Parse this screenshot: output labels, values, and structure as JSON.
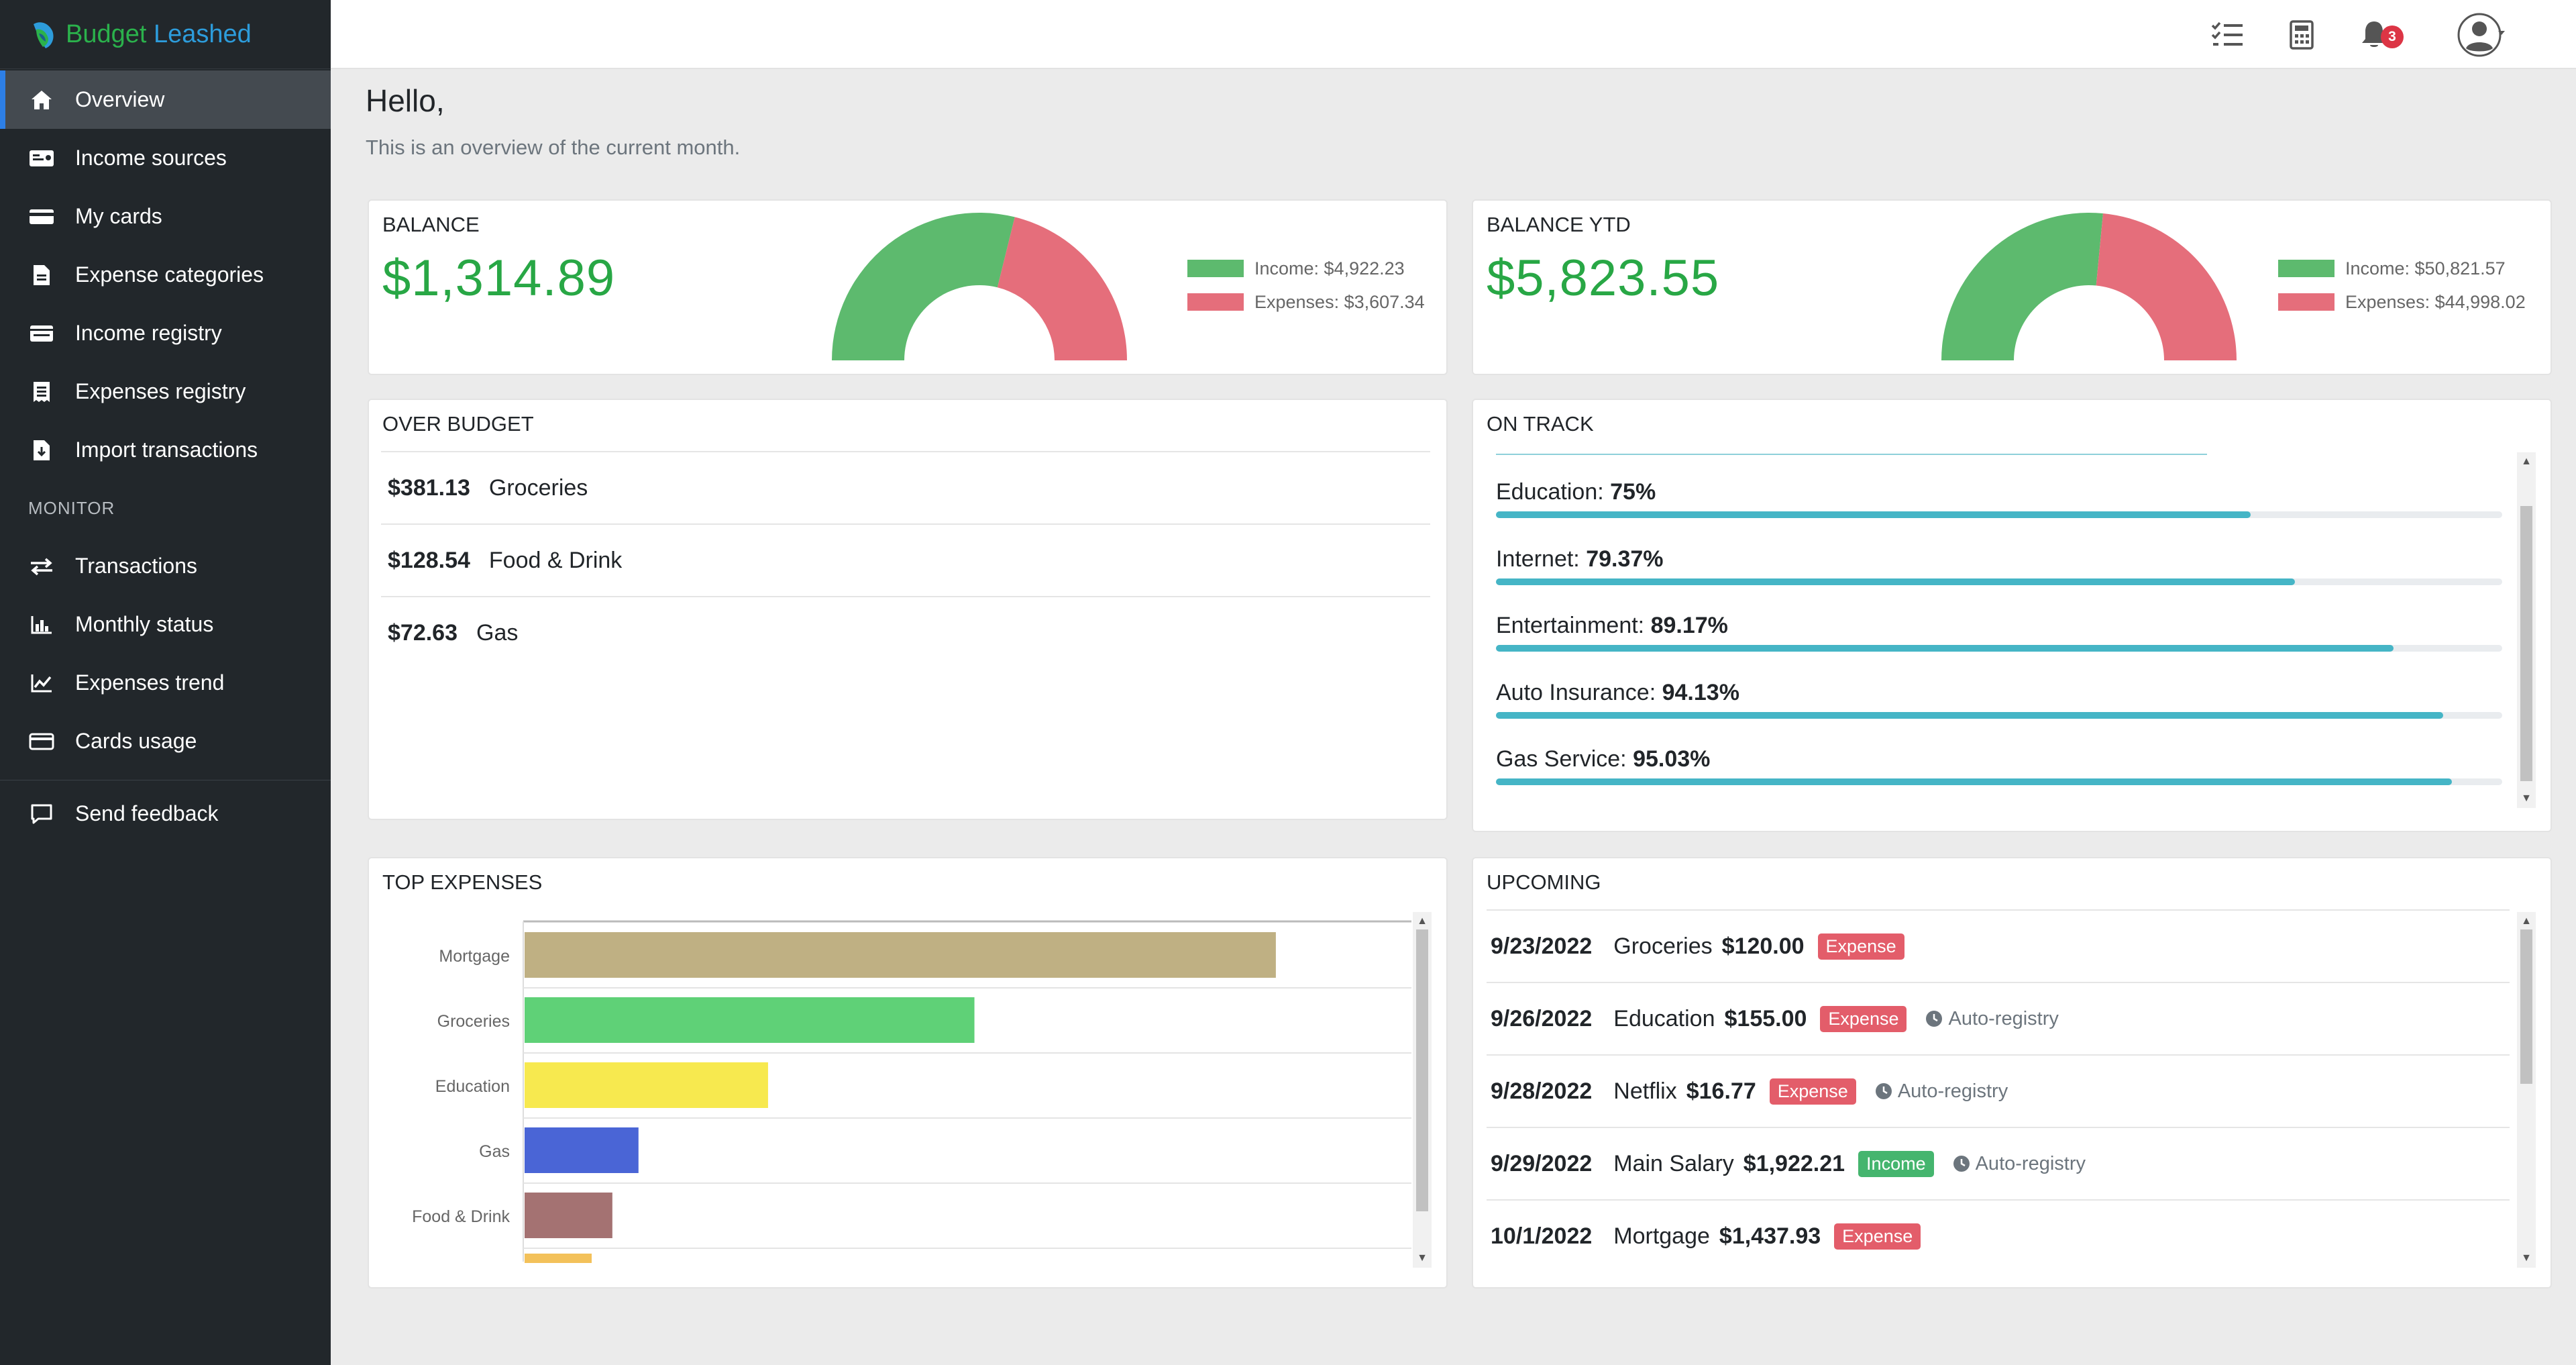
{
  "brand": {
    "name_part1": "Budget",
    "name_part2": " Leashed"
  },
  "sidebar": {
    "items": [
      {
        "label": "Overview",
        "icon": "home-icon",
        "active": true
      },
      {
        "label": "Income sources",
        "icon": "id-card-icon"
      },
      {
        "label": "My cards",
        "icon": "credit-card-icon"
      },
      {
        "label": "Expense categories",
        "icon": "file-icon"
      },
      {
        "label": "Income registry",
        "icon": "list-alt-icon"
      },
      {
        "label": "Expenses registry",
        "icon": "receipt-icon"
      },
      {
        "label": "Import transactions",
        "icon": "file-import-icon"
      }
    ],
    "monitor_heading": "MONITOR",
    "monitor_items": [
      {
        "label": "Transactions",
        "icon": "exchange-icon"
      },
      {
        "label": "Monthly status",
        "icon": "bar-chart-icon"
      },
      {
        "label": "Expenses trend",
        "icon": "line-chart-icon"
      },
      {
        "label": "Cards usage",
        "icon": "credit-card-icon"
      }
    ],
    "feedback": {
      "label": "Send feedback",
      "icon": "comment-icon"
    }
  },
  "topbar": {
    "notification_count": "3"
  },
  "greeting": {
    "title": "Hello,",
    "subtitle": "This is an overview of the current month."
  },
  "balance": {
    "title": "BALANCE",
    "amount": "$1,314.89",
    "income_label": "Income: $4,922.23",
    "expenses_label": "Expenses: $3,607.34",
    "income": 4922.23,
    "expenses": 3607.34,
    "income_color": "#5dba6e",
    "expenses_color": "#e56e7b"
  },
  "balance_ytd": {
    "title": "BALANCE YTD",
    "amount": "$5,823.55",
    "income_label": "Income: $50,821.57",
    "expenses_label": "Expenses: $44,998.02",
    "income": 50821.57,
    "expenses": 44998.02
  },
  "over_budget": {
    "title": "OVER BUDGET",
    "rows": [
      {
        "amount": "$381.13",
        "category": "Groceries"
      },
      {
        "amount": "$128.54",
        "category": "Food & Drink"
      },
      {
        "amount": "$72.63",
        "category": "Gas"
      }
    ]
  },
  "on_track": {
    "title": "ON TRACK",
    "rows": [
      {
        "name": "Education:",
        "pct": "75%",
        "value": 75
      },
      {
        "name": "Internet:",
        "pct": "79.37%",
        "value": 79.37
      },
      {
        "name": "Entertainment:",
        "pct": "89.17%",
        "value": 89.17
      },
      {
        "name": "Auto Insurance:",
        "pct": "94.13%",
        "value": 94.13
      },
      {
        "name": "Gas Service:",
        "pct": "95.03%",
        "value": 95.03
      }
    ]
  },
  "top_expenses": {
    "title": "TOP EXPENSES"
  },
  "chart_data": {
    "type": "bar",
    "orientation": "horizontal",
    "categories": [
      "Mortgage",
      "Groceries",
      "Education",
      "Gas",
      "Food & Drink"
    ],
    "values": [
      1437.93,
      861,
      466,
      218,
      168
    ],
    "colors": [
      "#bfb083",
      "#5fd177",
      "#f7e94f",
      "#4a65d6",
      "#a47272"
    ],
    "xlim": [
      0,
      1700
    ],
    "grid": true
  },
  "upcoming": {
    "title": "UPCOMING",
    "auto_label": "Auto-registry",
    "rows": [
      {
        "date": "9/23/2022",
        "name": "Groceries",
        "amount": "$120.00",
        "type": "Expense",
        "auto": false
      },
      {
        "date": "9/26/2022",
        "name": "Education",
        "amount": "$155.00",
        "type": "Expense",
        "auto": true
      },
      {
        "date": "9/28/2022",
        "name": "Netflix",
        "amount": "$16.77",
        "type": "Expense",
        "auto": true
      },
      {
        "date": "9/29/2022",
        "name": "Main Salary",
        "amount": "$1,922.21",
        "type": "Income",
        "auto": true
      },
      {
        "date": "10/1/2022",
        "name": "Mortgage",
        "amount": "$1,437.93",
        "type": "Expense",
        "auto": false
      }
    ]
  }
}
